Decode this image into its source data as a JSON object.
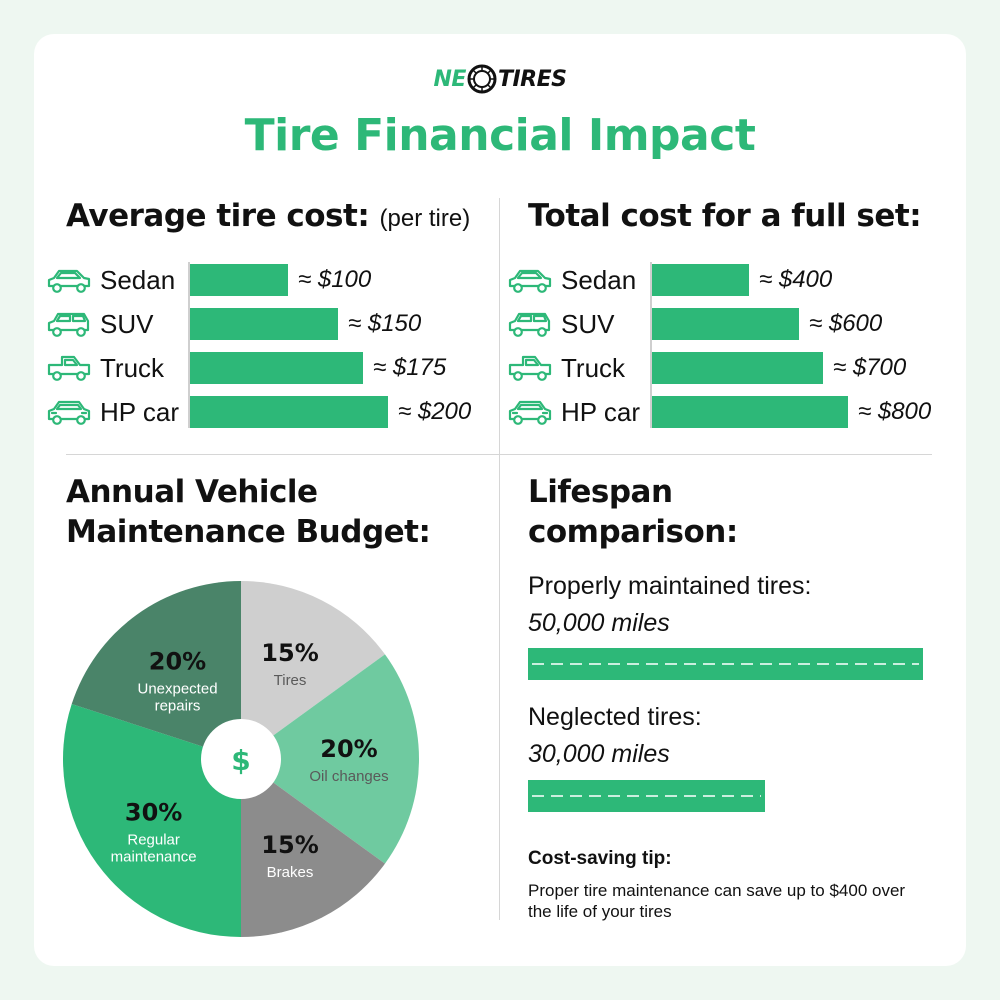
{
  "logo": {
    "part1": "NE",
    "part2": "TIRES"
  },
  "title": "Tire Financial Impact",
  "avg_cost": {
    "heading": "Average tire cost:",
    "subheading": "(per tire)",
    "rows": [
      {
        "label": "Sedan",
        "value": "≈ $100",
        "icon": "sedan-icon"
      },
      {
        "label": "SUV",
        "value": "≈ $150",
        "icon": "suv-icon"
      },
      {
        "label": "Truck",
        "value": "≈ $175",
        "icon": "truck-icon"
      },
      {
        "label": "HP car",
        "value": "≈ $200",
        "icon": "hp-car-icon"
      }
    ]
  },
  "full_set": {
    "heading": "Total cost for a full set:",
    "rows": [
      {
        "label": "Sedan",
        "value": "≈ $400",
        "icon": "sedan-icon"
      },
      {
        "label": "SUV",
        "value": "≈ $600",
        "icon": "suv-icon"
      },
      {
        "label": "Truck",
        "value": "≈ $700",
        "icon": "truck-icon"
      },
      {
        "label": "HP car",
        "value": "≈ $800",
        "icon": "hp-car-icon"
      }
    ]
  },
  "budget": {
    "heading_line1": "Annual Vehicle",
    "heading_line2": "Maintenance Budget:",
    "center_symbol": "$"
  },
  "lifespan": {
    "heading_line1": "Lifespan",
    "heading_line2": "comparison:",
    "items": [
      {
        "label": "Properly maintained tires:",
        "value": "50,000 miles"
      },
      {
        "label": "Neglected tires:",
        "value": "30,000 miles"
      }
    ]
  },
  "tip": {
    "title": "Cost-saving tip:",
    "text": "Proper tire maintenance can save up to $400 over the life of your tires"
  },
  "colors": {
    "brand_green": "#2db878",
    "light_green": "#6fcaa0",
    "dark_green": "#4a8469",
    "light_gray": "#cfcfcf",
    "dark_gray": "#8c8c8c"
  },
  "chart_data": [
    {
      "type": "bar",
      "orientation": "horizontal",
      "categories": [
        "Sedan",
        "SUV",
        "Truck",
        "HP car"
      ],
      "values": [
        100,
        150,
        175,
        200
      ],
      "title": "Average tire cost: (per tire)",
      "unit": "$"
    },
    {
      "type": "bar",
      "orientation": "horizontal",
      "categories": [
        "Sedan",
        "SUV",
        "Truck",
        "HP car"
      ],
      "values": [
        400,
        600,
        700,
        800
      ],
      "title": "Total cost for a full set:",
      "unit": "$"
    },
    {
      "type": "pie",
      "title": "Annual Vehicle Maintenance Budget:",
      "slices": [
        {
          "label": "Tires",
          "pct_label": "15%",
          "value": 15,
          "color": "#cfcfcf"
        },
        {
          "label": "Oil changes",
          "pct_label": "20%",
          "value": 20,
          "color": "#6fcaa0"
        },
        {
          "label": "Brakes",
          "pct_label": "15%",
          "value": 15,
          "color": "#8c8c8c"
        },
        {
          "label": "Regular maintenance",
          "pct_label": "30%",
          "value": 30,
          "color": "#2db878"
        },
        {
          "label": "Unexpected repairs",
          "pct_label": "20%",
          "value": 20,
          "color": "#4a8469"
        }
      ]
    },
    {
      "type": "bar",
      "orientation": "horizontal",
      "title": "Lifespan comparison:",
      "categories": [
        "Properly maintained tires",
        "Neglected tires"
      ],
      "values": [
        50000,
        30000
      ],
      "unit": "miles"
    }
  ]
}
